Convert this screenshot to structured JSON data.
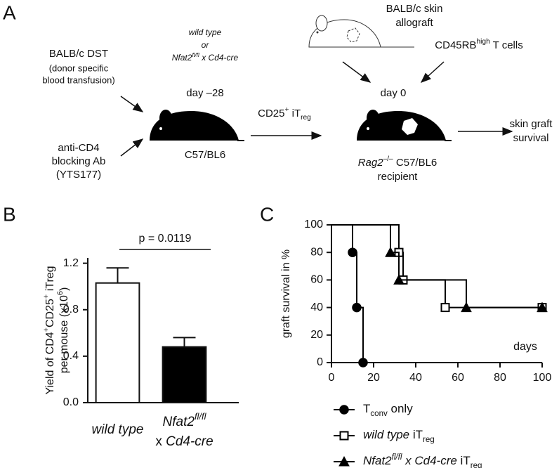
{
  "panel_a": {
    "label": "A",
    "dst": [
      "BALB/c DST",
      "(donor specific",
      "blood transfusion)"
    ],
    "anti_cd4": [
      "anti-CD4",
      "blocking Ab",
      "(YTS177)"
    ],
    "genotypes": [
      [
        {
          "t": "wild type",
          "s": "i"
        }
      ],
      [
        {
          "t": "or",
          "s": "i"
        }
      ],
      [
        {
          "t": "Nfat2",
          "s": "i"
        },
        {
          "t": "fl/fl",
          "s": "ip"
        },
        {
          "t": " x Cd4-cre",
          "s": "i"
        }
      ]
    ],
    "donor_day": "day –28",
    "donor_strain": "C57/BL6",
    "transfer": [
      {
        "t": "CD25"
      },
      {
        "t": "+",
        "s": "p"
      },
      {
        "t": " iT"
      },
      {
        "t": "reg",
        "s": "b"
      }
    ],
    "allograft": [
      "BALB/c skin",
      "allograft"
    ],
    "t_cells": [
      {
        "t": "CD45RB"
      },
      {
        "t": "high",
        "s": "p"
      },
      {
        "t": " T cells"
      }
    ],
    "recipient_day": "day 0",
    "recipient": [
      [
        {
          "t": "Rag2",
          "s": "i"
        },
        {
          "t": "–/–",
          "s": "p"
        },
        {
          "t": " C57/BL6"
        }
      ],
      "recipient"
    ],
    "outcome": [
      "skin graft",
      "survival"
    ]
  },
  "chart_data": [
    {
      "type": "bar",
      "label": "B",
      "y_label": [
        [
          {
            "t": "Yield of CD4"
          },
          {
            "t": "+",
            "s": "p"
          },
          {
            "t": "CD25"
          },
          {
            "t": "+",
            "s": "p"
          },
          {
            "t": " iTreg"
          }
        ],
        [
          {
            "t": "per mouse (x10"
          },
          {
            "t": "6",
            "s": "p"
          },
          {
            "t": ")"
          }
        ]
      ],
      "categories": [
        [
          [
            {
              "t": "wild type",
              "s": "i"
            }
          ]
        ],
        [
          [
            {
              "t": "Nfat2",
              "s": "i"
            },
            {
              "t": "fl/fl",
              "s": "ip"
            }
          ],
          [
            {
              "t": "x "
            },
            {
              "t": "Cd4-cre",
              "s": "i"
            }
          ]
        ]
      ],
      "values": [
        1.03,
        0.48
      ],
      "errors": [
        0.13,
        0.08
      ],
      "colors": [
        "#ffffff",
        "#000000"
      ],
      "annotation": "p = 0.0119",
      "ylim": [
        0,
        1.24
      ],
      "yticks": [
        {
          "value": 0,
          "label": "0.0"
        },
        {
          "value": 0.4,
          "label": "0.4"
        },
        {
          "value": 0.8,
          "label": "0.8"
        },
        {
          "value": 1.2,
          "label": "1.2"
        }
      ],
      "grid": false
    },
    {
      "type": "step",
      "label": "C",
      "y_label": "graft survival in %",
      "x_label": "days",
      "xlim": [
        0,
        100
      ],
      "ylim": [
        0,
        100
      ],
      "xticks": [
        0,
        20,
        40,
        60,
        80,
        100
      ],
      "yticks": [
        0,
        20,
        40,
        60,
        80,
        100
      ],
      "grid": false,
      "series": [
        {
          "name": [
            {
              "t": "T"
            },
            {
              "t": "conv",
              "s": "b"
            },
            {
              "t": " only"
            }
          ],
          "marker": "circle",
          "color": "#000000",
          "fill": "#000000",
          "x": [
            10,
            12,
            15
          ],
          "values": [
            80,
            40,
            0
          ]
        },
        {
          "name": [
            {
              "t": "wild type",
              "s": "i"
            },
            {
              "t": " iT"
            },
            {
              "t": "reg",
              "s": "b"
            }
          ],
          "marker": "square",
          "color": "#000000",
          "fill": "#ffffff",
          "x": [
            32,
            34,
            54,
            100
          ],
          "values": [
            80,
            60,
            40,
            40
          ]
        },
        {
          "name": [
            {
              "t": "Nfat2",
              "s": "i"
            },
            {
              "t": "fl/fl",
              "s": "ip"
            },
            {
              "t": " x Cd4-cre",
              "s": "i"
            },
            {
              "t": " iT"
            },
            {
              "t": "reg",
              "s": "b"
            }
          ],
          "marker": "triangle",
          "color": "#000000",
          "fill": "#000000",
          "x": [
            28,
            32,
            64,
            100
          ],
          "values": [
            80,
            60,
            40,
            40
          ]
        }
      ]
    }
  ]
}
